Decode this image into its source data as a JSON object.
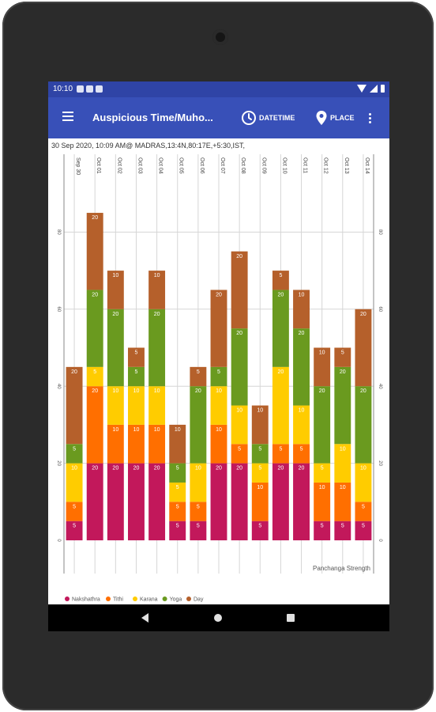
{
  "status_bar": {
    "time": "10:10"
  },
  "toolbar": {
    "title": "Auspicious Time/Muho...",
    "datetime_label": "DATETIME",
    "place_label": "PLACE"
  },
  "info_line": "30 Sep 2020, 10:09 AM@ MADRAS,13:4N,80:17E,+5:30,IST,",
  "chart_data": {
    "type": "bar",
    "stacked": true,
    "title": "",
    "xlabel": "",
    "ylabel": "",
    "description_label": "Panchanga Strength",
    "ylim": [
      0,
      90
    ],
    "y_ticks": [
      0,
      20,
      40,
      60,
      80
    ],
    "categories": [
      "Sep 30",
      "Oct 01",
      "Oct 02",
      "Oct 03",
      "Oct 04",
      "Oct 05",
      "Oct 06",
      "Oct 07",
      "Oct 08",
      "Oct 09",
      "Oct 10",
      "Oct 11",
      "Oct 12",
      "Oct 13",
      "Oct 14"
    ],
    "legend_position": "bottom-left",
    "series": [
      {
        "name": "Nakshathra",
        "color": "#c2185b",
        "values": [
          5,
          20,
          20,
          20,
          20,
          5,
          5,
          20,
          20,
          5,
          20,
          20,
          5,
          5,
          5
        ]
      },
      {
        "name": "Tithi",
        "color": "#ff6f00",
        "values": [
          5,
          20,
          10,
          10,
          10,
          5,
          5,
          10,
          5,
          10,
          5,
          5,
          10,
          10,
          5
        ]
      },
      {
        "name": "Karana",
        "color": "#ffcc00",
        "values": [
          10,
          5,
          10,
          10,
          10,
          5,
          10,
          10,
          10,
          5,
          20,
          10,
          5,
          10,
          10
        ]
      },
      {
        "name": "Yoga",
        "color": "#6a9a1f",
        "values": [
          5,
          20,
          20,
          5,
          20,
          5,
          20,
          5,
          20,
          5,
          20,
          20,
          20,
          20,
          20
        ]
      },
      {
        "name": "Day",
        "color": "#b5602b",
        "values": [
          20,
          20,
          10,
          5,
          10,
          10,
          5,
          20,
          20,
          10,
          5,
          10,
          10,
          5,
          20
        ]
      }
    ]
  }
}
